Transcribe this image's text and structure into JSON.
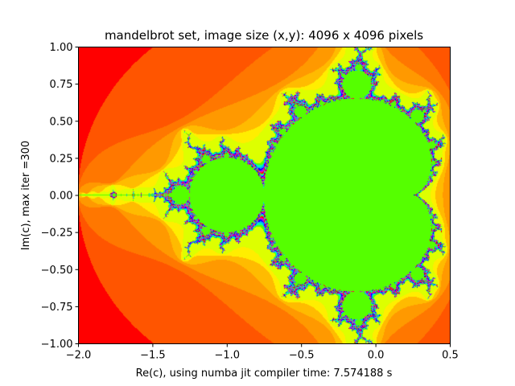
{
  "chart_data": {
    "type": "heatmap",
    "title": "mandelbrot set, image size (x,y): 4096 x 4096 pixels",
    "xlabel": "Re(c), using numba jit compiler time: 7.574188 s",
    "ylabel": "Im(c), max iter =300",
    "xlim": [
      -2.0,
      0.5
    ],
    "ylim": [
      -1.0,
      1.0
    ],
    "xticks": [
      -2.0,
      -1.5,
      -1.0,
      -0.5,
      0.0,
      0.5
    ],
    "xtick_labels": [
      "−2.0",
      "−1.5",
      "−1.0",
      "−0.5",
      "0.0",
      "0.5"
    ],
    "yticks": [
      -1.0,
      -0.75,
      -0.5,
      -0.25,
      0.0,
      0.25,
      0.5,
      0.75,
      1.0
    ],
    "ytick_labels": [
      "−1.00",
      "−0.75",
      "−0.50",
      "−0.25",
      "0.00",
      "0.25",
      "0.50",
      "0.75",
      "1.00"
    ],
    "max_iter": 300,
    "colormap": "prism",
    "grid": false,
    "colors": {
      "set_interior": "#55ff00",
      "far_exterior": "#ff0000",
      "band_orange": "#ff5500",
      "band_yellow": "#ffee00",
      "band_blue": "#0000ff",
      "band_purple": "#aa00ff"
    }
  }
}
